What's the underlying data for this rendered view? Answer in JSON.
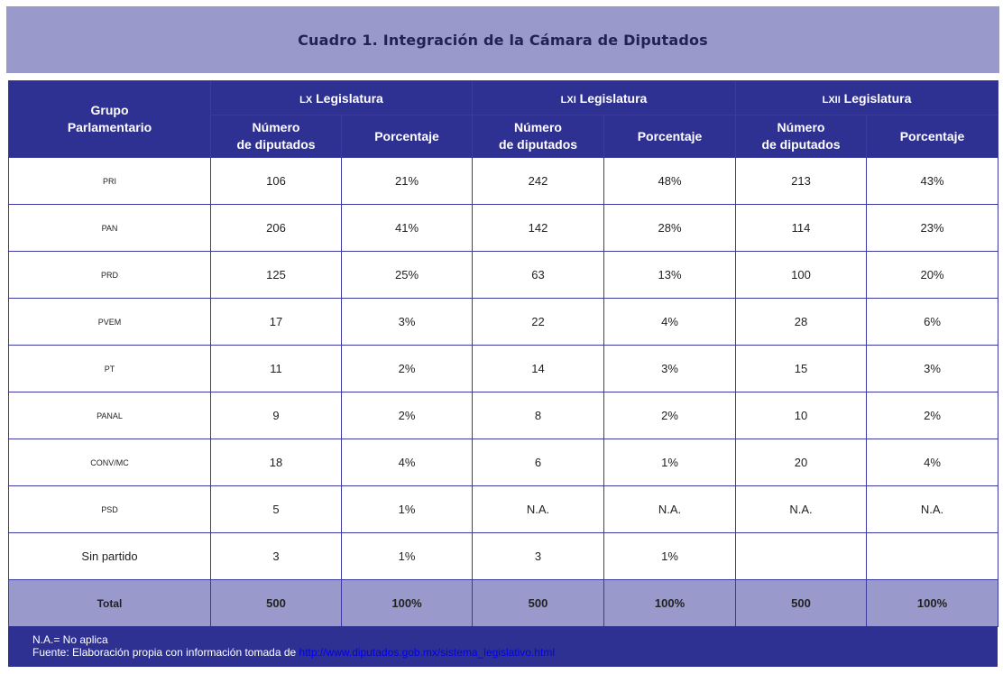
{
  "title": "Cuadro 1. Integración de la Cámara de Diputados",
  "header": {
    "group_label": "Grupo\nParlamentario",
    "legislaturas": [
      {
        "roman": "LX",
        "label": " Legislatura"
      },
      {
        "roman": "LXI",
        "label": " Legislatura"
      },
      {
        "roman": "LXII",
        "label": " Legislatura"
      }
    ],
    "num_label": "Número\nde diputados",
    "pct_label": "Porcentaje"
  },
  "rows": [
    {
      "party": "PRI",
      "values": [
        "106",
        "21%",
        "242",
        "48%",
        "213",
        "43%"
      ]
    },
    {
      "party": "PAN",
      "values": [
        "206",
        "41%",
        "142",
        "28%",
        "114",
        "23%"
      ]
    },
    {
      "party": "PRD",
      "values": [
        "125",
        "25%",
        "63",
        "13%",
        "100",
        "20%"
      ]
    },
    {
      "party": "PVEM",
      "values": [
        "17",
        "3%",
        "22",
        "4%",
        "28",
        "6%"
      ]
    },
    {
      "party": "PT",
      "values": [
        "11",
        "2%",
        "14",
        "3%",
        "15",
        "3%"
      ]
    },
    {
      "party": "PANAL",
      "values": [
        "9",
        "2%",
        "8",
        "2%",
        "10",
        "2%"
      ]
    },
    {
      "party": "CONV/MC",
      "values": [
        "18",
        "4%",
        "6",
        "1%",
        "20",
        "4%"
      ]
    },
    {
      "party": "PSD",
      "values": [
        "5",
        "1%",
        "N.A.",
        "N.A.",
        "N.A.",
        "N.A."
      ]
    },
    {
      "party": "Sin partido",
      "values": [
        "3",
        "1%",
        "3",
        "1%",
        "",
        ""
      ]
    }
  ],
  "total": {
    "party": "Total",
    "values": [
      "500",
      "100%",
      "500",
      "100%",
      "500",
      "100%"
    ]
  },
  "footer": {
    "note": "N.A.= No aplica",
    "source_prefix": "Fuente: Elaboración propia con información tomada de ",
    "source_link": "http://www.diputados.gob.mx/sistema_legislativo.html"
  }
}
